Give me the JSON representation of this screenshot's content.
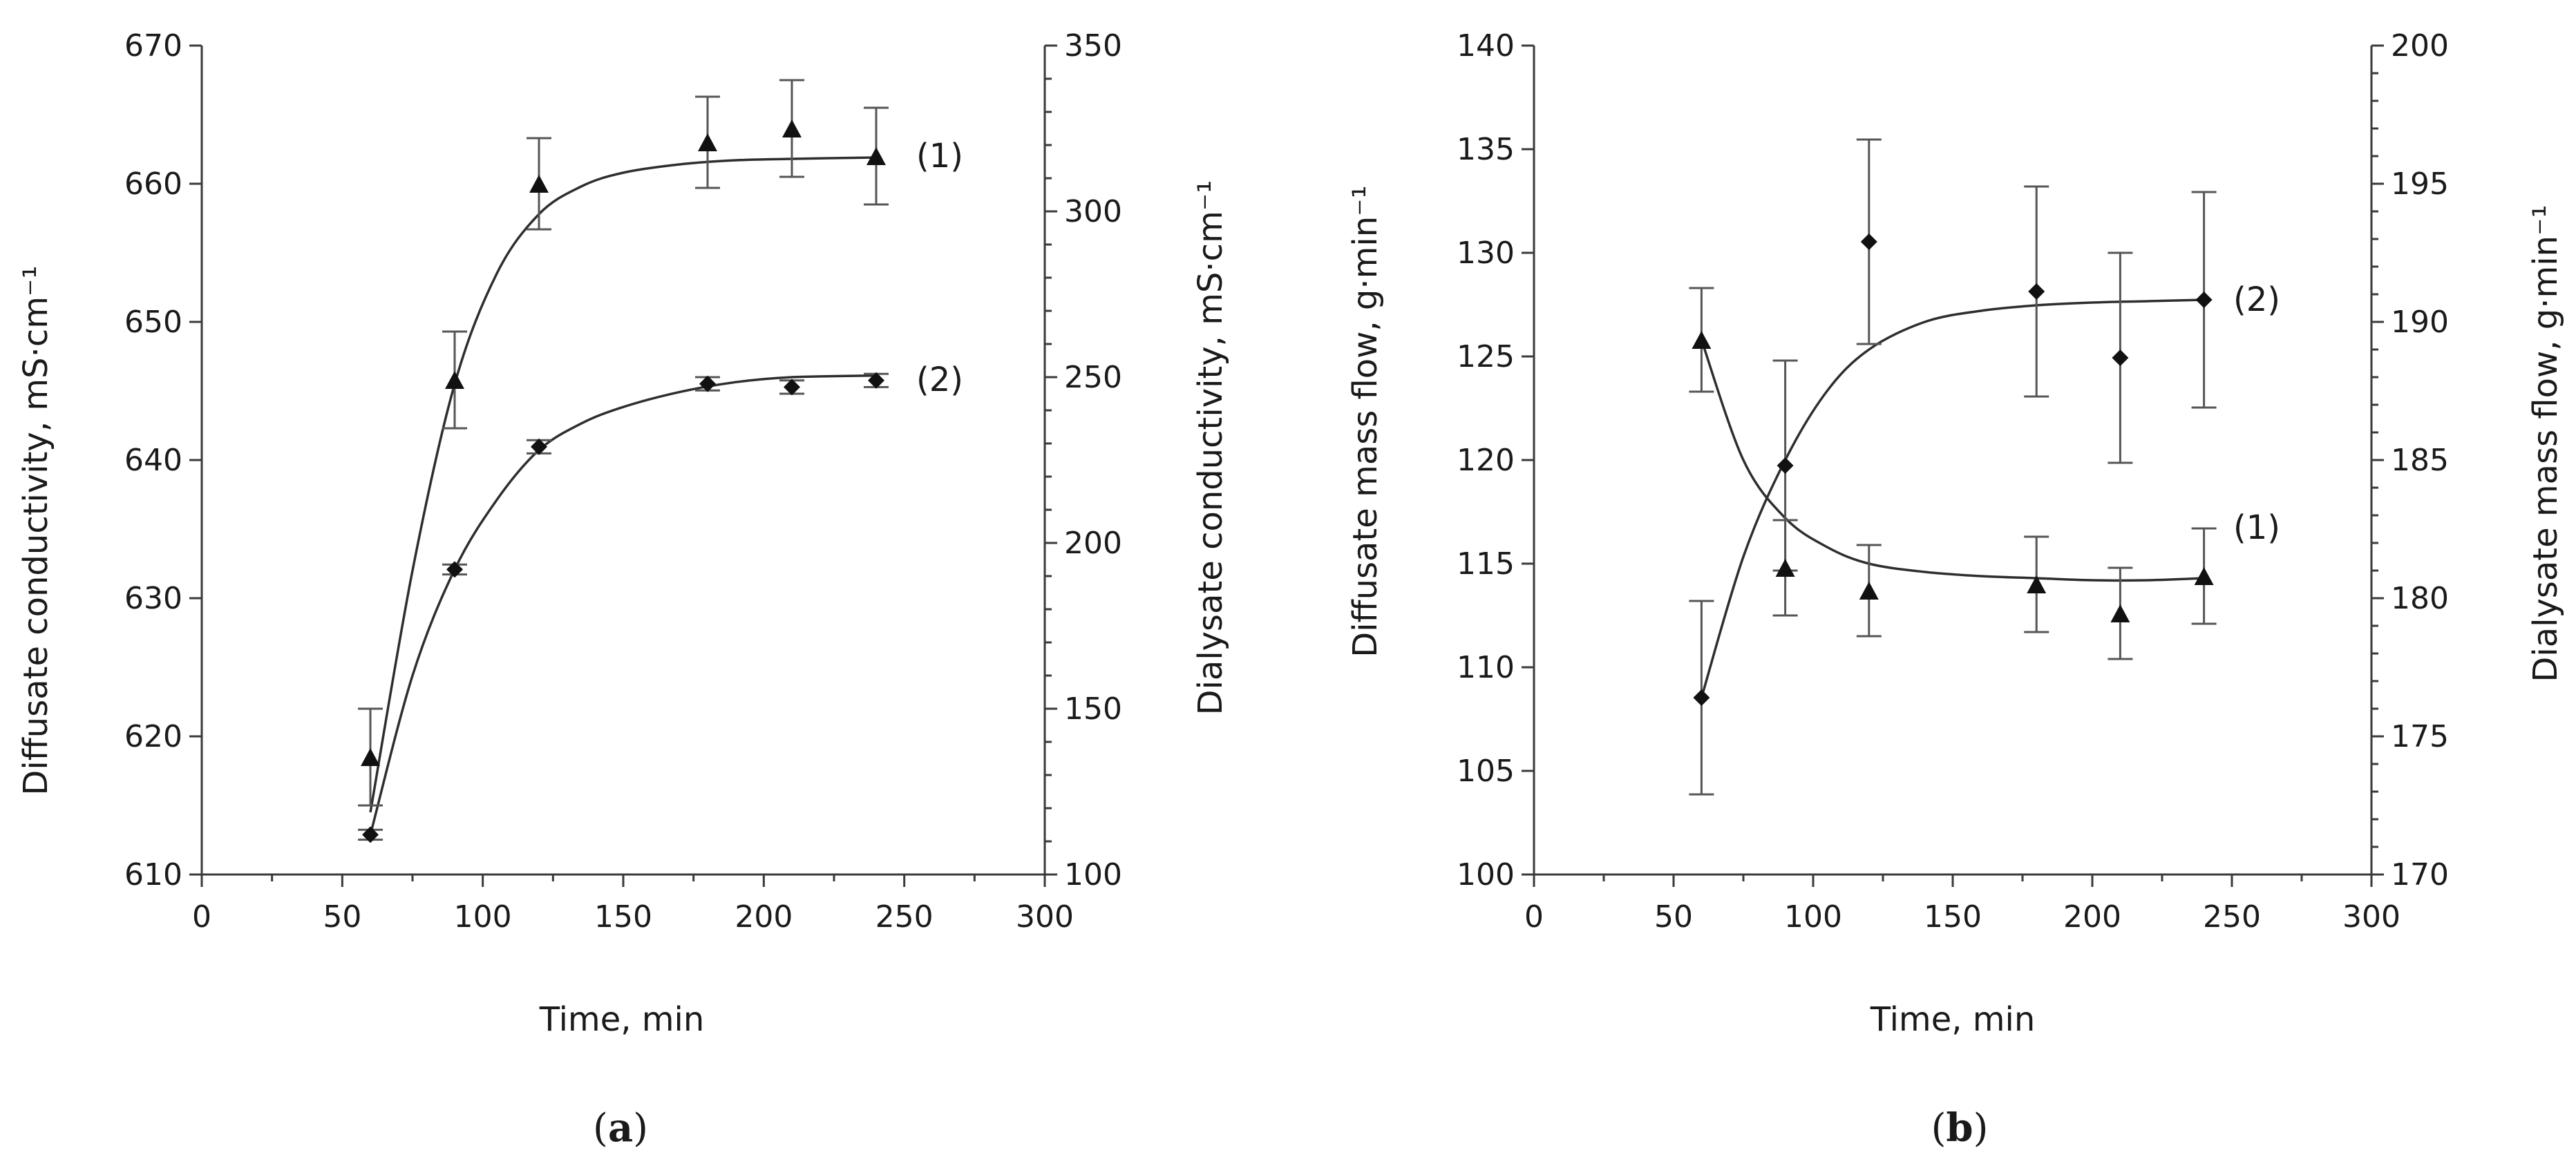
{
  "chart_data": [
    {
      "type": "scatter",
      "panel": "a",
      "caption": "a",
      "xlabel": "Time, min",
      "ylabel_left": "Diffusate conductivity, mS·cm⁻¹",
      "ylabel_right": "Dialysate conductivity, mS·cm⁻¹",
      "xlim": [
        0,
        300
      ],
      "xticks": [
        0,
        50,
        100,
        150,
        200,
        250,
        300
      ],
      "ylim_left": [
        610,
        670
      ],
      "yticks_left": [
        610,
        620,
        630,
        640,
        650,
        660,
        670
      ],
      "ylim_right": [
        100,
        350
      ],
      "yticks_right": [
        100,
        150,
        200,
        250,
        300,
        350
      ],
      "series": [
        {
          "name": "(1)",
          "axis": "left",
          "marker": "triangle",
          "x": [
            60,
            90,
            120,
            180,
            210,
            240
          ],
          "y": [
            618.5,
            645.8,
            660.0,
            663.0,
            664.0,
            662.0
          ],
          "err": [
            3.5,
            3.5,
            3.3,
            3.3,
            3.5,
            3.5
          ],
          "fit_x": [
            60,
            75,
            90,
            105,
            120,
            135,
            150,
            170,
            190,
            210,
            240
          ],
          "fit_y": [
            614.5,
            632.0,
            645.5,
            653.5,
            657.8,
            659.8,
            660.8,
            661.4,
            661.7,
            661.8,
            661.9
          ]
        },
        {
          "name": "(2)",
          "axis": "right",
          "marker": "diamond",
          "x": [
            60,
            90,
            120,
            180,
            210,
            240
          ],
          "y": [
            112,
            192,
            229,
            248,
            247,
            249
          ],
          "err": [
            1.5,
            1.5,
            2,
            2,
            2,
            2
          ],
          "fit_x": [
            60,
            75,
            90,
            105,
            120,
            135,
            150,
            170,
            190,
            210,
            240
          ],
          "fit_y": [
            112,
            160,
            192,
            213,
            228,
            236,
            241,
            245.5,
            248.5,
            250,
            250.5
          ]
        }
      ]
    },
    {
      "type": "scatter",
      "panel": "b",
      "caption": "b",
      "xlabel": "Time, min",
      "ylabel_left": "Diffusate mass flow, g·min⁻¹",
      "ylabel_right": "Dialysate mass flow, g·min⁻¹",
      "xlim": [
        0,
        300
      ],
      "xticks": [
        0,
        50,
        100,
        150,
        200,
        250,
        300
      ],
      "ylim_left": [
        100,
        140
      ],
      "yticks_left": [
        100,
        105,
        110,
        115,
        120,
        125,
        130,
        135,
        140
      ],
      "ylim_right": [
        170,
        200
      ],
      "yticks_right": [
        170,
        175,
        180,
        185,
        190,
        195,
        200
      ],
      "series": [
        {
          "name": "(1)",
          "axis": "left",
          "marker": "triangle",
          "x": [
            60,
            90,
            120,
            180,
            210,
            240
          ],
          "y": [
            125.8,
            114.8,
            113.7,
            114.0,
            112.6,
            114.4
          ],
          "err": [
            2.5,
            2.3,
            2.2,
            2.3,
            2.2,
            2.3
          ],
          "fit_x": [
            60,
            75,
            90,
            105,
            120,
            140,
            160,
            180,
            200,
            220,
            240
          ],
          "fit_y": [
            125.8,
            120.0,
            117.2,
            115.8,
            115.0,
            114.6,
            114.4,
            114.3,
            114.2,
            114.2,
            114.3
          ]
        },
        {
          "name": "(2)",
          "axis": "right",
          "marker": "diamond",
          "x": [
            60,
            90,
            120,
            180,
            210,
            240
          ],
          "y": [
            176.4,
            184.8,
            192.9,
            191.1,
            188.7,
            190.8
          ],
          "err": [
            3.5,
            3.8,
            3.7,
            3.8,
            3.8,
            3.9
          ],
          "fit_x": [
            60,
            75,
            90,
            105,
            120,
            140,
            160,
            180,
            200,
            220,
            240
          ],
          "fit_y": [
            176.4,
            181.5,
            185.0,
            187.5,
            189.0,
            190.0,
            190.4,
            190.6,
            190.7,
            190.75,
            190.8
          ]
        }
      ]
    }
  ]
}
